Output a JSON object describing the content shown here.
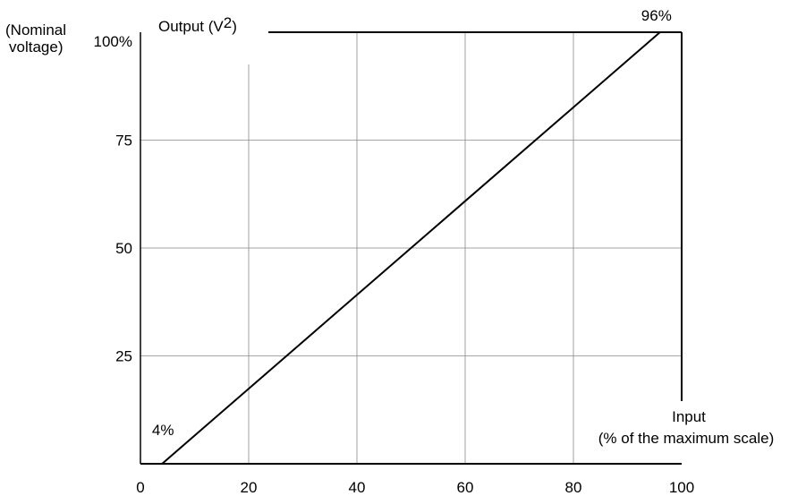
{
  "chart_data": {
    "type": "line",
    "ylabel_text": "Output (V",
    "ylabel_sup": "2",
    "ylabel_close": ")",
    "ylabel_unit_line1": "(Nominal",
    "ylabel_unit_line2": "voltage)",
    "xlabel_line1": "Input",
    "xlabel_line2": "(% of the maximum scale)",
    "xlim": [
      0,
      100
    ],
    "ylim": [
      0,
      100
    ],
    "x_ticks": [
      {
        "value": 0,
        "label": "0"
      },
      {
        "value": 20,
        "label": "20"
      },
      {
        "value": 40,
        "label": "40"
      },
      {
        "value": 60,
        "label": "60"
      },
      {
        "value": 80,
        "label": "80"
      },
      {
        "value": 100,
        "label": "100"
      }
    ],
    "y_ticks": [
      {
        "value": 25,
        "label": "25"
      },
      {
        "value": 50,
        "label": "50"
      },
      {
        "value": 75,
        "label": "75"
      },
      {
        "value": 100,
        "label": "100%"
      }
    ],
    "grid": true,
    "series": [
      {
        "x": [
          0,
          4,
          96,
          100
        ],
        "y": [
          0,
          0,
          100,
          100
        ]
      }
    ],
    "annotations": [
      {
        "text": "4%",
        "x": 4,
        "y": 0
      },
      {
        "text": "96%",
        "x": 96,
        "y": 100
      }
    ]
  }
}
